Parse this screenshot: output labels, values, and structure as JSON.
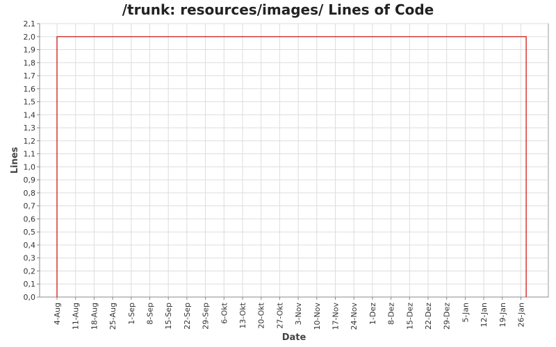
{
  "chart_data": {
    "type": "line",
    "title": "/trunk: resources/images/ Lines of Code",
    "xlabel": "Date",
    "ylabel": "Lines",
    "x_ticks": [
      "4-Aug",
      "11-Aug",
      "18-Aug",
      "25-Aug",
      "1-Sep",
      "8-Sep",
      "15-Sep",
      "22-Sep",
      "29-Sep",
      "6-Okt",
      "13-Okt",
      "20-Okt",
      "27-Okt",
      "3-Nov",
      "10-Nov",
      "17-Nov",
      "24-Nov",
      "1-Dez",
      "8-Dez",
      "15-Dez",
      "22-Dez",
      "29-Dez",
      "5-Jan",
      "12-Jan",
      "19-Jan",
      "26-Jan"
    ],
    "y_ticks": [
      "0,0",
      "0,1",
      "0,2",
      "0,3",
      "0,4",
      "0,5",
      "0,6",
      "0,7",
      "0,8",
      "0,9",
      "1,0",
      "1,1",
      "1,2",
      "1,3",
      "1,4",
      "1,5",
      "1,6",
      "1,7",
      "1,8",
      "1,9",
      "2,0",
      "2,1"
    ],
    "ylim": [
      0,
      2.1
    ],
    "grid": true,
    "series": [
      {
        "color": "#cc0000",
        "points": [
          {
            "x": "4-Aug",
            "y": 0
          },
          {
            "x": "4-Aug",
            "y": 2.0
          },
          {
            "x": "28-Jan",
            "y": 2.0
          },
          {
            "x": "28-Jan",
            "y": 0
          }
        ]
      }
    ]
  }
}
